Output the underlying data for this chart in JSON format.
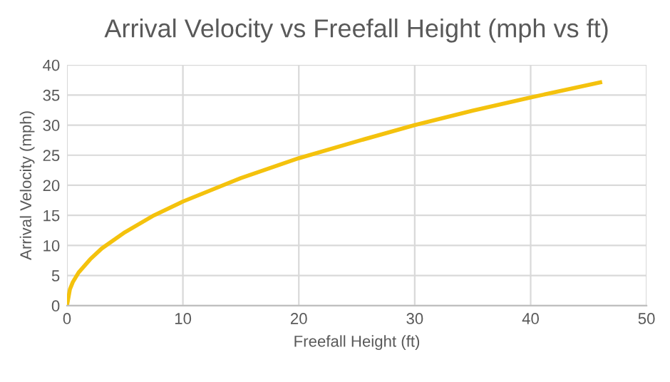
{
  "chart_data": {
    "type": "line",
    "title": "Arrival Velocity vs Freefall Height (mph vs ft)",
    "xlabel": "Freefall Height (ft)",
    "ylabel": "Arrival Velocity (mph)",
    "x": [
      0,
      0.25,
      0.5,
      1,
      2,
      3,
      5,
      7.5,
      10,
      15,
      20,
      25,
      30,
      35,
      40,
      46
    ],
    "series": [
      {
        "color": "#f4c20d",
        "values": [
          0,
          2.7,
          3.9,
          5.5,
          7.7,
          9.5,
          12.2,
          15.0,
          17.3,
          21.2,
          24.5,
          27.3,
          30.0,
          32.4,
          34.6,
          37.1
        ]
      }
    ],
    "xlim": [
      0,
      50
    ],
    "xticks": [
      0,
      10,
      20,
      30,
      40,
      50
    ],
    "ylim": [
      0,
      40
    ],
    "yticks": [
      0,
      5,
      10,
      15,
      20,
      25,
      30,
      35,
      40
    ],
    "grid": true,
    "legend": false,
    "marker": "none",
    "line_style": "solid"
  }
}
